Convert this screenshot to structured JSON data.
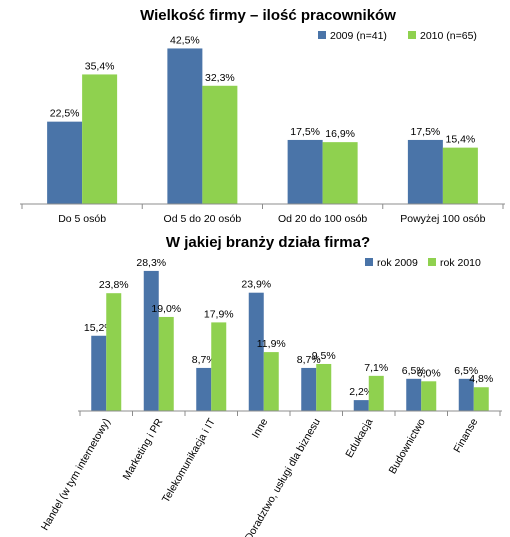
{
  "colors": {
    "series_2009": "#4a74a8",
    "series_2010": "#8fd14f"
  },
  "chart_data": [
    {
      "type": "bar",
      "title": "Wielkość firmy – ilość pracowników",
      "categories": [
        "Do 5 osób",
        "Od 5 do 20 osób",
        "Od 20 do 100 osób",
        "Powyżej 100 osób"
      ],
      "series": [
        {
          "name": "2009 (n=41)",
          "values": [
            22.5,
            42.5,
            17.5,
            17.5
          ],
          "labels": [
            "22,5%",
            "42,5%",
            "17,5%",
            "17,5%"
          ]
        },
        {
          "name": "2010 (n=65)",
          "values": [
            35.4,
            32.3,
            16.9,
            15.4
          ],
          "labels": [
            "35,4%",
            "32,3%",
            "16,9%",
            "15,4%"
          ]
        }
      ],
      "ylim": [
        0,
        45
      ],
      "legend": "top-right",
      "grid": false
    },
    {
      "type": "bar",
      "title": "W jakiej branży działa firma?",
      "categories": [
        "Handel (w tym internetowy)",
        "Marketing i PR",
        "Telekomunikacja i IT",
        "Inne",
        "Doradztwo, usługi dla biznesu",
        "Edukacja",
        "Budownictwo",
        "Finanse"
      ],
      "series": [
        {
          "name": "rok 2009",
          "values": [
            15.2,
            28.3,
            8.7,
            23.9,
            8.7,
            2.2,
            6.5,
            6.5
          ],
          "labels": [
            "15,2%",
            "28,3%",
            "8,7%",
            "23,9%",
            "8,7%",
            "2,2%",
            "6,5%",
            "6,5%"
          ]
        },
        {
          "name": "rok 2010",
          "values": [
            23.8,
            19.0,
            17.9,
            11.9,
            9.5,
            7.1,
            6.0,
            4.8
          ],
          "labels": [
            "23,8%",
            "19,0%",
            "17,9%",
            "11,9%",
            "9,5%",
            "7,1%",
            "6,0%",
            "4,8%"
          ]
        }
      ],
      "ylim": [
        0,
        30
      ],
      "legend": "top-right",
      "grid": false
    }
  ]
}
